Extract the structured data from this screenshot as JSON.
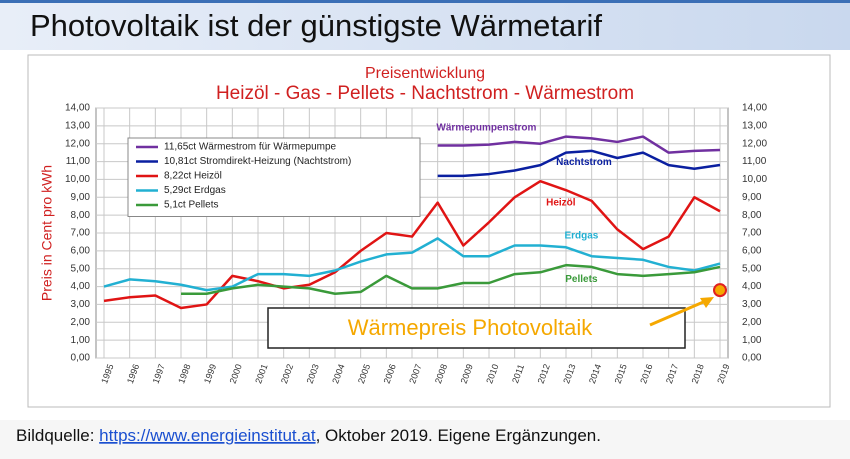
{
  "slide": {
    "title": "Photovoltaik ist der günstigste Wärmetarif",
    "caption": {
      "prefix": "Bildquelle: ",
      "link": "https://www.energieinstitut.at",
      "suffix": ", Oktober 2019. Eigene Ergänzungen."
    }
  },
  "chart_data": {
    "type": "line",
    "title": "Preisentwicklung",
    "subtitle": "Heizöl - Gas - Pellets - Nachtstrom - Wärmestrom",
    "y_label": "Preis in Cent pro kWh",
    "categories": [
      "1995",
      "1996",
      "1997",
      "1998",
      "1999",
      "2000",
      "2001",
      "2002",
      "2003",
      "2004",
      "2005",
      "2006",
      "2007",
      "2008",
      "2009",
      "2010",
      "2011",
      "2012",
      "2013",
      "2014",
      "2015",
      "2016",
      "2017",
      "2018",
      "2019"
    ],
    "ylim": [
      0,
      14
    ],
    "yticks": [
      {
        "value": 0,
        "label": "0,00"
      },
      {
        "value": 1,
        "label": "1,00"
      },
      {
        "value": 2,
        "label": "2,00"
      },
      {
        "value": 3,
        "label": "3,00"
      },
      {
        "value": 4,
        "label": "4,00"
      },
      {
        "value": 5,
        "label": "5,00"
      },
      {
        "value": 6,
        "label": "6,00"
      },
      {
        "value": 7,
        "label": "7,00"
      },
      {
        "value": 8,
        "label": "8,00"
      },
      {
        "value": 9,
        "label": "9,00"
      },
      {
        "value": 10,
        "label": "10,00"
      },
      {
        "value": 11,
        "label": "11,00"
      },
      {
        "value": 12,
        "label": "12,00"
      },
      {
        "value": 13,
        "label": "13,00"
      },
      {
        "value": 14,
        "label": "14,00"
      }
    ],
    "grid": true,
    "series": [
      {
        "name": "11,65ct Wärmestrom für Wärmepumpe",
        "label": "Wärmepumpenstrom",
        "color": "#7030a0",
        "values": [
          null,
          null,
          null,
          null,
          null,
          null,
          null,
          null,
          null,
          null,
          null,
          null,
          null,
          11.9,
          11.9,
          11.95,
          12.1,
          12.0,
          12.4,
          12.3,
          12.1,
          12.4,
          11.5,
          11.6,
          11.65
        ]
      },
      {
        "name": "10,81ct Stromdirekt-Heizung (Nachtstrom)",
        "label": "Nachtstrom",
        "color": "#0a1fa0",
        "values": [
          null,
          null,
          null,
          null,
          null,
          null,
          null,
          null,
          null,
          null,
          null,
          null,
          null,
          10.2,
          10.2,
          10.3,
          10.5,
          10.8,
          11.5,
          11.6,
          11.2,
          11.5,
          10.8,
          10.6,
          10.81
        ]
      },
      {
        "name": "8,22ct Heizöl",
        "label": "Heizöl",
        "color": "#e01414",
        "values": [
          3.2,
          3.4,
          3.5,
          2.8,
          3.0,
          4.6,
          4.3,
          3.9,
          4.1,
          4.8,
          6.0,
          7.0,
          6.8,
          8.7,
          6.3,
          7.6,
          9.0,
          9.9,
          9.4,
          8.8,
          7.2,
          6.1,
          6.8,
          9.0,
          8.22
        ]
      },
      {
        "name": "5,29ct Erdgas",
        "label": "Erdgas",
        "color": "#22b0d2",
        "values": [
          4.0,
          4.4,
          4.3,
          4.1,
          3.8,
          4.0,
          4.7,
          4.7,
          4.6,
          4.9,
          5.4,
          5.8,
          5.9,
          6.7,
          5.7,
          5.7,
          6.3,
          6.3,
          6.2,
          5.7,
          5.6,
          5.5,
          5.1,
          4.9,
          5.29
        ]
      },
      {
        "name": "5,1ct Pellets",
        "label": "Pellets",
        "color": "#3a9a3a",
        "values": [
          null,
          null,
          null,
          3.6,
          3.6,
          3.9,
          4.1,
          4.0,
          3.9,
          3.6,
          3.7,
          4.6,
          3.9,
          3.9,
          4.2,
          4.2,
          4.7,
          4.8,
          5.2,
          5.1,
          4.7,
          4.6,
          4.7,
          4.8,
          5.1
        ]
      }
    ],
    "highlight": {
      "label": "Wärmepreis Photovoltaik",
      "x": "2019",
      "value": 3.8,
      "color": "#f5a800"
    }
  }
}
